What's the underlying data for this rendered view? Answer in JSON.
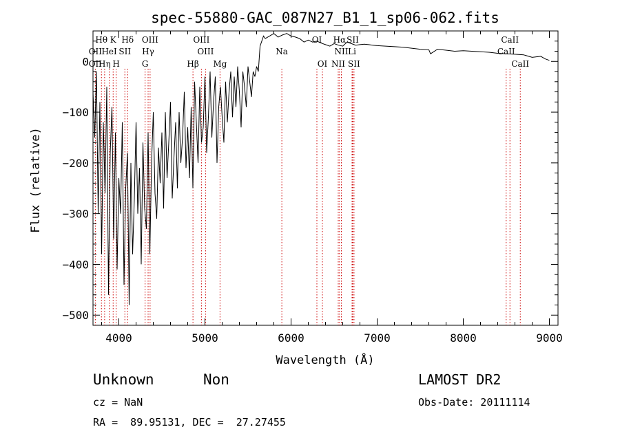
{
  "chart_data": {
    "type": "line",
    "title": "spec-55880-GAC_087N27_B1_1_sp06-062.fits",
    "xlabel": "Wavelength (Å)",
    "ylabel": "Flux (relative)",
    "xlim": [
      3700,
      9100
    ],
    "ylim": [
      -520,
      60
    ],
    "xticks": [
      4000,
      5000,
      6000,
      7000,
      8000,
      9000
    ],
    "yticks": [
      0,
      -100,
      -200,
      -300,
      -400,
      -500
    ],
    "grid": false,
    "line_color": "#000000",
    "line_marker_color": "#cc0000",
    "spectrum": {
      "x": [
        3700,
        3720,
        3740,
        3760,
        3780,
        3800,
        3820,
        3840,
        3860,
        3880,
        3900,
        3920,
        3940,
        3960,
        3980,
        4000,
        4020,
        4040,
        4060,
        4080,
        4100,
        4120,
        4140,
        4160,
        4180,
        4200,
        4220,
        4240,
        4260,
        4280,
        4300,
        4320,
        4340,
        4360,
        4380,
        4400,
        4420,
        4440,
        4460,
        4480,
        4500,
        4520,
        4540,
        4560,
        4580,
        4600,
        4620,
        4640,
        4660,
        4680,
        4700,
        4720,
        4740,
        4760,
        4780,
        4800,
        4820,
        4840,
        4860,
        4880,
        4900,
        4920,
        4940,
        4960,
        4980,
        5000,
        5020,
        5040,
        5060,
        5080,
        5100,
        5120,
        5140,
        5160,
        5180,
        5200,
        5220,
        5240,
        5260,
        5280,
        5300,
        5320,
        5340,
        5360,
        5380,
        5400,
        5420,
        5440,
        5460,
        5480,
        5500,
        5520,
        5540,
        5560,
        5580,
        5600,
        5620,
        5640,
        5660,
        5680,
        5700,
        5750,
        5800,
        5850,
        5900,
        5950,
        6000,
        6050,
        6100,
        6150,
        6200,
        6250,
        6300,
        6350,
        6400,
        6450,
        6500,
        6550,
        6600,
        6650,
        6700,
        6750,
        6800,
        6850,
        6900,
        6950,
        7000,
        7100,
        7200,
        7300,
        7400,
        7500,
        7600,
        7620,
        7700,
        7800,
        7900,
        8000,
        8100,
        8200,
        8300,
        8400,
        8500,
        8600,
        8700,
        8800,
        8900,
        8950,
        9000
      ],
      "y": [
        -60,
        -150,
        -20,
        -300,
        -80,
        -380,
        -120,
        -260,
        -50,
        -460,
        -180,
        -90,
        -350,
        -140,
        -410,
        -230,
        -300,
        -120,
        -440,
        -250,
        -180,
        -480,
        -200,
        -380,
        -270,
        -120,
        -300,
        -210,
        -400,
        -160,
        -290,
        -330,
        -140,
        -380,
        -200,
        -100,
        -260,
        -310,
        -170,
        -240,
        -140,
        -290,
        -100,
        -230,
        -160,
        -80,
        -270,
        -190,
        -120,
        -250,
        -100,
        -200,
        -150,
        -60,
        -210,
        -130,
        -230,
        -90,
        -250,
        -40,
        -120,
        -200,
        -50,
        -160,
        -130,
        -30,
        -180,
        -110,
        -20,
        -150,
        -80,
        -30,
        -200,
        -90,
        -50,
        -110,
        -160,
        -40,
        -120,
        -60,
        -20,
        -110,
        -30,
        -90,
        -10,
        -60,
        -130,
        -20,
        -50,
        -90,
        -10,
        -40,
        -70,
        -20,
        -30,
        -10,
        -20,
        30,
        40,
        50,
        45,
        50,
        55,
        48,
        52,
        55,
        50,
        48,
        45,
        38,
        42,
        38,
        40,
        36,
        33,
        30,
        35,
        32,
        30,
        38,
        35,
        32,
        33,
        34,
        33,
        32,
        31,
        30,
        29,
        28,
        26,
        24,
        23,
        15,
        24,
        22,
        20,
        21,
        20,
        19,
        18,
        16,
        15,
        14,
        13,
        8,
        10,
        5,
        2
      ]
    },
    "lines": {
      "top_row": [
        {
          "label": "Hθ",
          "wavelength": 3798
        },
        {
          "label": "K",
          "wavelength": 3934
        },
        {
          "label": "Hδ",
          "wavelength": 4102
        },
        {
          "label": "OIII",
          "wavelength": 4363
        },
        {
          "label": "OIII",
          "wavelength": 4959
        },
        {
          "label": "OI",
          "wavelength": 6300
        },
        {
          "label": "Hα",
          "wavelength": 6563
        },
        {
          "label": "SII",
          "wavelength": 6716
        },
        {
          "label": "CaII",
          "wavelength": 8542
        }
      ],
      "middle_row": [
        {
          "label": "OII",
          "wavelength": 3727
        },
        {
          "label": "HeI",
          "wavelength": 3889
        },
        {
          "label": "SII",
          "wavelength": 4070
        },
        {
          "label": "Hγ",
          "wavelength": 4340
        },
        {
          "label": "OIII",
          "wavelength": 5007
        },
        {
          "label": "Na",
          "wavelength": 5893
        },
        {
          "label": "NII",
          "wavelength": 6584
        },
        {
          "label": "Li",
          "wavelength": 6708
        },
        {
          "label": "CaII",
          "wavelength": 8498
        }
      ],
      "bottom_row": [
        {
          "label": "OII",
          "wavelength": 3727
        },
        {
          "label": "Hη",
          "wavelength": 3835
        },
        {
          "label": "H",
          "wavelength": 3969
        },
        {
          "label": "G",
          "wavelength": 4305
        },
        {
          "label": "Hβ",
          "wavelength": 4861
        },
        {
          "label": "Mg",
          "wavelength": 5175
        },
        {
          "label": "OI",
          "wavelength": 6364
        },
        {
          "label": "NII",
          "wavelength": 6548
        },
        {
          "label": "SII",
          "wavelength": 6731
        },
        {
          "label": "CaII",
          "wavelength": 8662
        }
      ]
    }
  },
  "footer": {
    "class": "Unknown",
    "subclass": "Non",
    "survey": "LAMOST DR2",
    "cz": "cz = NaN",
    "obs_date": "Obs-Date: 20111114",
    "radec": "RA =  89.95131, DEC =  27.27455"
  }
}
